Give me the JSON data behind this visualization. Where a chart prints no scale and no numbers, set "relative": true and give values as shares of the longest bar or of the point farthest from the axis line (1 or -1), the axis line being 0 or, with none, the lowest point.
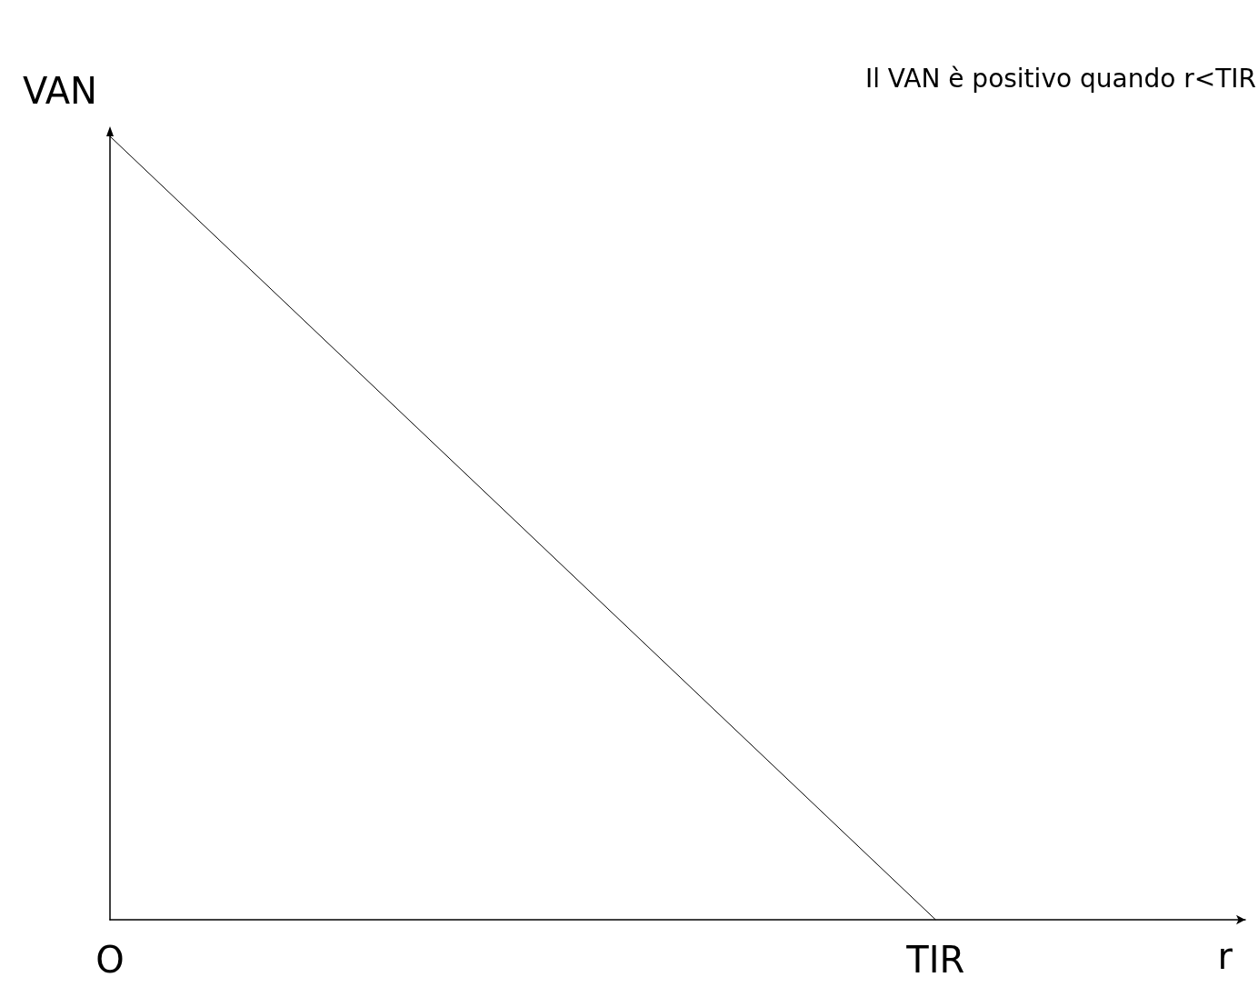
{
  "chart_data": {
    "type": "line",
    "xlabel": "r",
    "ylabel": "VAN",
    "relative": true,
    "annotations": [
      "Il VAN è positivo quando r<TIR"
    ],
    "categories": [
      "O",
      null,
      null,
      null,
      null,
      null,
      null,
      null,
      "TIR",
      null,
      null,
      null
    ],
    "series": [
      {
        "color": "#000000",
        "values": [
          1,
          null,
          null,
          null,
          null,
          null,
          null,
          null,
          0,
          null,
          null,
          null
        ]
      }
    ],
    "line_style": "solid",
    "grid": false
  }
}
